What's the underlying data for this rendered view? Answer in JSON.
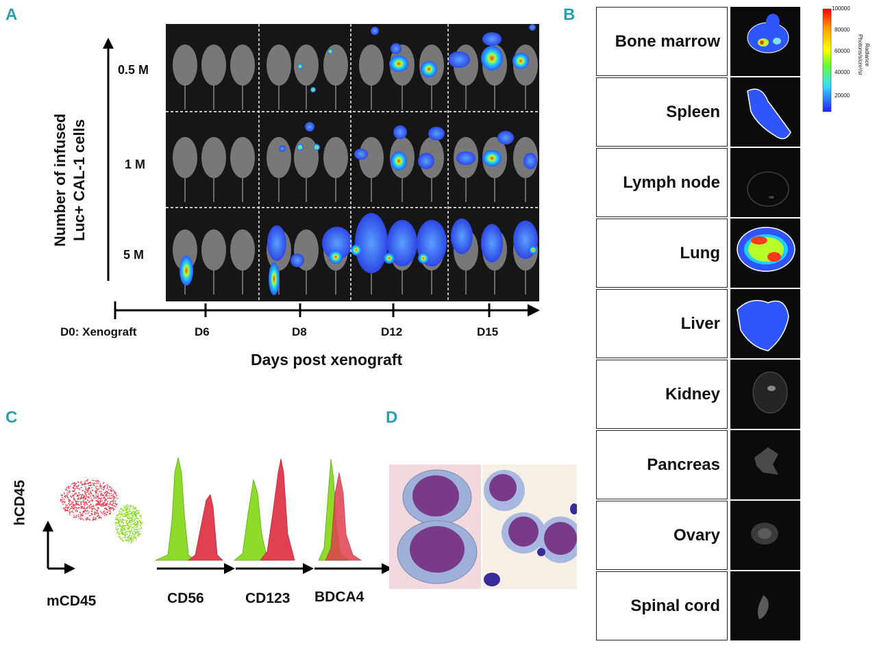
{
  "panels": {
    "a": "A",
    "b": "B",
    "c": "C",
    "d": "D"
  },
  "panel_a": {
    "y_axis_title_line1": "Number of infused",
    "y_axis_title_line2": "Luc+ CAL-1 cells",
    "doses": [
      "0.5 M",
      "1 M",
      "5 M"
    ],
    "timepoints": [
      "D0: Xenograft",
      "D6",
      "D8",
      "D12",
      "D15"
    ],
    "x_axis_title": "Days post xenograft"
  },
  "panel_b": {
    "tissues": [
      "Bone marrow",
      "Spleen",
      "Lymph node",
      "Lung",
      "Liver",
      "Kidney",
      "Pancreas",
      "Ovary",
      "Spinal cord"
    ],
    "colorbar_ticks": [
      "100000",
      "80000",
      "60000",
      "40000",
      "20000"
    ],
    "colorbar_title_line1": "Radiance",
    "colorbar_title_line2": "Photons/s/cm²/sr"
  },
  "panel_c": {
    "scatter_y_label": "hCD45",
    "scatter_x_label": "mCD45",
    "histogram_labels": [
      "CD56",
      "CD123",
      "BDCA4"
    ]
  },
  "colors": {
    "panel_letter": "#2a9fb0",
    "red_population": "#e0404f",
    "green_population": "#8edb2a"
  }
}
